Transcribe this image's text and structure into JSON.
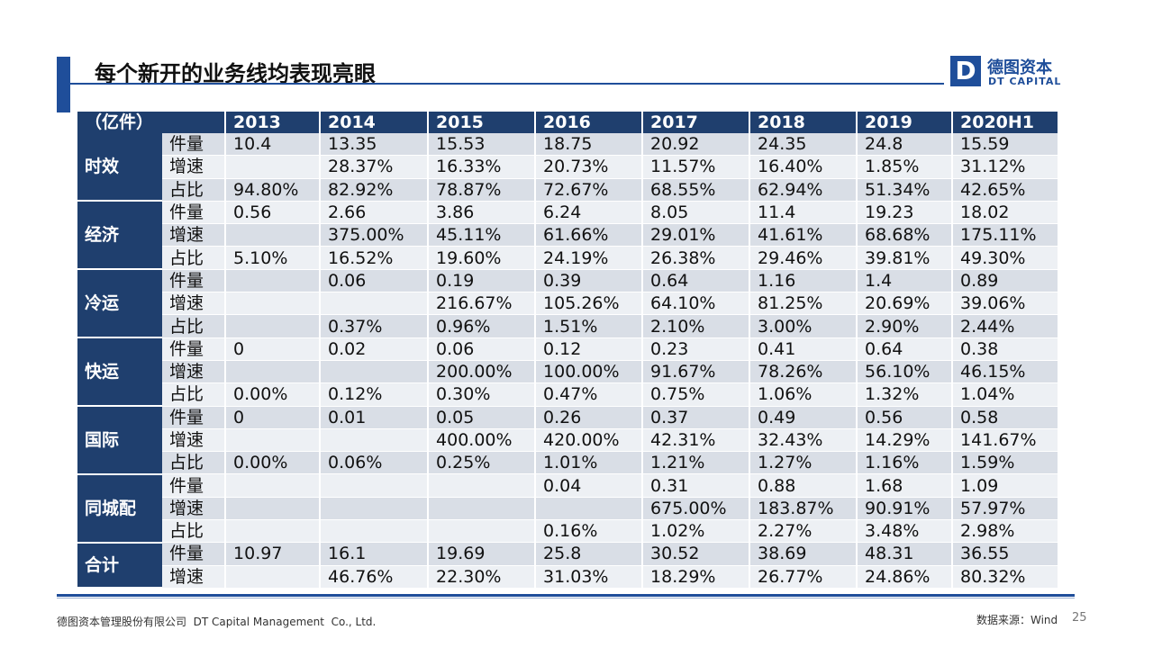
{
  "header": {
    "title": "每个新开的业务线均表现亮眼",
    "logo": {
      "mark": "D",
      "name": "德图资本",
      "name_en": "DT CAPITAL"
    }
  },
  "table": {
    "unit": "（亿件）",
    "columns": [
      "2013",
      "2014",
      "2015",
      "2016",
      "2017",
      "2018",
      "2019",
      "2020H1"
    ],
    "groups": [
      {
        "name": "时效",
        "rows": [
          {
            "metric": "件量",
            "values": [
              "10.4",
              "13.35",
              "15.53",
              "18.75",
              "20.92",
              "24.35",
              "24.8",
              "15.59"
            ]
          },
          {
            "metric": "增速",
            "values": [
              null,
              "28.37%",
              "16.33%",
              "20.73%",
              "11.57%",
              "16.40%",
              "1.85%",
              "31.12%"
            ]
          },
          {
            "metric": "占比",
            "values": [
              "94.80%",
              "82.92%",
              "78.87%",
              "72.67%",
              "68.55%",
              "62.94%",
              "51.34%",
              "42.65%"
            ]
          }
        ]
      },
      {
        "name": "经济",
        "rows": [
          {
            "metric": "件量",
            "values": [
              "0.56",
              "2.66",
              "3.86",
              "6.24",
              "8.05",
              "11.4",
              "19.23",
              "18.02"
            ]
          },
          {
            "metric": "增速",
            "values": [
              null,
              "375.00%",
              "45.11%",
              "61.66%",
              "29.01%",
              "41.61%",
              "68.68%",
              "175.11%"
            ]
          },
          {
            "metric": "占比",
            "values": [
              "5.10%",
              "16.52%",
              "19.60%",
              "24.19%",
              "26.38%",
              "29.46%",
              "39.81%",
              "49.30%"
            ]
          }
        ]
      },
      {
        "name": "冷运",
        "rows": [
          {
            "metric": "件量",
            "values": [
              null,
              "0.06",
              "0.19",
              "0.39",
              "0.64",
              "1.16",
              "1.4",
              "0.89"
            ]
          },
          {
            "metric": "增速",
            "values": [
              null,
              null,
              "216.67%",
              "105.26%",
              "64.10%",
              "81.25%",
              "20.69%",
              "39.06%"
            ]
          },
          {
            "metric": "占比",
            "values": [
              null,
              "0.37%",
              "0.96%",
              "1.51%",
              "2.10%",
              "3.00%",
              "2.90%",
              "2.44%"
            ]
          }
        ]
      },
      {
        "name": "快运",
        "rows": [
          {
            "metric": "件量",
            "values": [
              "0",
              "0.02",
              "0.06",
              "0.12",
              "0.23",
              "0.41",
              "0.64",
              "0.38"
            ]
          },
          {
            "metric": "增速",
            "values": [
              null,
              null,
              "200.00%",
              "100.00%",
              "91.67%",
              "78.26%",
              "56.10%",
              "46.15%"
            ]
          },
          {
            "metric": "占比",
            "values": [
              "0.00%",
              "0.12%",
              "0.30%",
              "0.47%",
              "0.75%",
              "1.06%",
              "1.32%",
              "1.04%"
            ]
          }
        ]
      },
      {
        "name": "国际",
        "rows": [
          {
            "metric": "件量",
            "values": [
              "0",
              "0.01",
              "0.05",
              "0.26",
              "0.37",
              "0.49",
              "0.56",
              "0.58"
            ]
          },
          {
            "metric": "增速",
            "values": [
              null,
              null,
              "400.00%",
              "420.00%",
              "42.31%",
              "32.43%",
              "14.29%",
              "141.67%"
            ]
          },
          {
            "metric": "占比",
            "values": [
              "0.00%",
              "0.06%",
              "0.25%",
              "1.01%",
              "1.21%",
              "1.27%",
              "1.16%",
              "1.59%"
            ]
          }
        ]
      },
      {
        "name": "同城配",
        "rows": [
          {
            "metric": "件量",
            "values": [
              null,
              null,
              null,
              "0.04",
              "0.31",
              "0.88",
              "1.68",
              "1.09"
            ]
          },
          {
            "metric": "增速",
            "values": [
              null,
              null,
              null,
              null,
              "675.00%",
              "183.87%",
              "90.91%",
              "57.97%"
            ]
          },
          {
            "metric": "占比",
            "values": [
              null,
              null,
              null,
              "0.16%",
              "1.02%",
              "2.27%",
              "3.48%",
              "2.98%"
            ]
          }
        ]
      },
      {
        "name": "合计",
        "rows": [
          {
            "metric": "件量",
            "values": [
              "10.97",
              "16.1",
              "19.69",
              "25.8",
              "30.52",
              "38.69",
              "48.31",
              "36.55"
            ]
          },
          {
            "metric": "增速",
            "values": [
              null,
              "46.76%",
              "22.30%",
              "31.03%",
              "18.29%",
              "26.77%",
              "24.86%",
              "80.32%"
            ]
          }
        ]
      }
    ]
  },
  "footer": {
    "company": "德图资本管理股份有限公司  DT Capital Management  Co., Ltd.",
    "source": "数据来源：Wind",
    "page": "25"
  }
}
